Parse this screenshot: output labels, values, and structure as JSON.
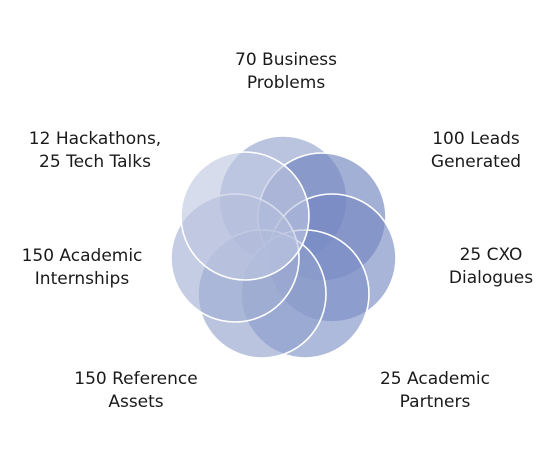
{
  "colors": {
    "circle_fills": [
      "#8f9fcb",
      "#6b7fbd",
      "#7486c2",
      "#7d8fc6",
      "#909fcc",
      "#a1aed3",
      "#bfc7e1"
    ],
    "circle_stroke": "#ffffff",
    "text": "#1a1a1a"
  },
  "petals": [
    {
      "key": "top",
      "lines": [
        "70 Business",
        "Problems"
      ]
    },
    {
      "key": "top_right",
      "lines": [
        "100 Leads",
        "Generated"
      ]
    },
    {
      "key": "right",
      "lines": [
        "25 CXO",
        "Dialogues"
      ]
    },
    {
      "key": "bottom_right",
      "lines": [
        "25 Academic",
        "Partners"
      ]
    },
    {
      "key": "bottom_left",
      "lines": [
        "150 Reference",
        "Assets"
      ]
    },
    {
      "key": "left",
      "lines": [
        "150 Academic",
        "Internships"
      ]
    },
    {
      "key": "top_left",
      "lines": [
        "12 Hackathons,",
        "25 Tech Talks"
      ]
    }
  ]
}
